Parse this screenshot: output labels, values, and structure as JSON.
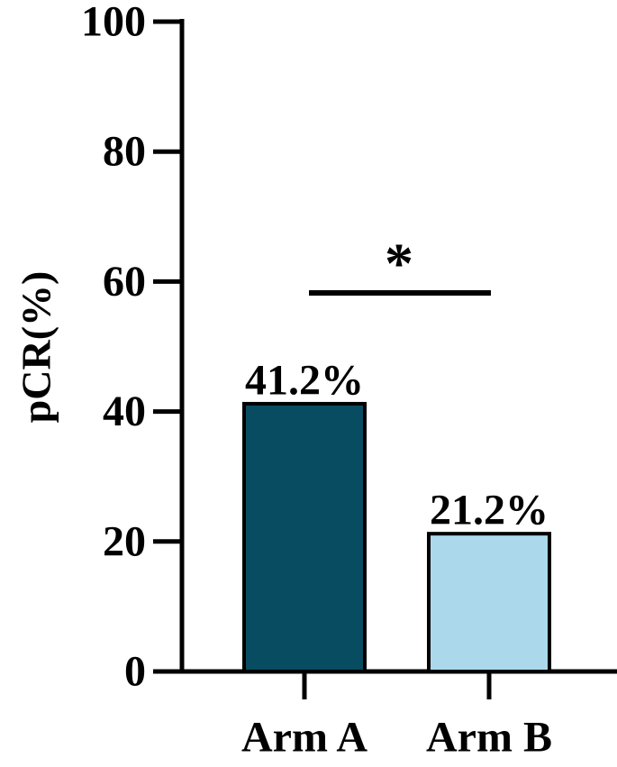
{
  "chart_data": {
    "type": "bar",
    "y_label": "pCR(%)",
    "categories": [
      "Arm A",
      "Arm B"
    ],
    "values": [
      41.2,
      21.2
    ],
    "value_labels": [
      "41.2%",
      "21.2%"
    ],
    "colors": [
      "#084c61",
      "#acd8eb"
    ],
    "ylim": [
      0,
      100
    ],
    "yticks": [
      0,
      20,
      40,
      60,
      80,
      100
    ],
    "annotation": "*"
  }
}
